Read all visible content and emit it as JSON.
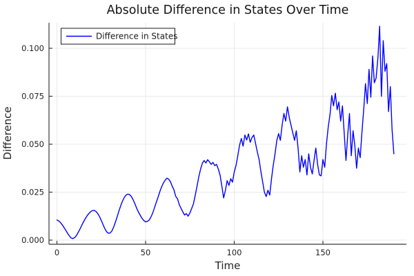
{
  "title": "Absolute Difference in States Over Time",
  "legend": {
    "label": "Difference in States"
  },
  "colors": {
    "line": "#0000ff",
    "grid": "#e9e9e9",
    "spine": "#36383a",
    "tick_label": "#222222",
    "title": "#141414",
    "legend_border": "#1a1a1a",
    "legend_bg": "#ffffff"
  },
  "chart_data": {
    "type": "line",
    "title": "Absolute Difference in States Over Time",
    "xlabel": "Time",
    "ylabel": "Difference",
    "xlim": [
      -4.5,
      197
    ],
    "ylim": [
      -0.0022,
      0.1133
    ],
    "grid": true,
    "legend_position": "top-left",
    "x_ticks": {
      "values": [
        0,
        50,
        100,
        150
      ],
      "labels": [
        "0",
        "50",
        "100",
        "150"
      ]
    },
    "y_ticks": {
      "values": [
        0.0,
        0.025,
        0.05,
        0.075,
        0.1
      ],
      "labels": [
        "0.000",
        "0.025",
        "0.050",
        "0.075",
        "0.100"
      ]
    },
    "series": [
      {
        "name": "Difference in States",
        "color": "#0000ff",
        "x_start": 0,
        "x_step": 1,
        "y": [
          0.0105,
          0.01,
          0.0092,
          0.008,
          0.0066,
          0.0051,
          0.0036,
          0.0022,
          0.0011,
          0.0008,
          0.0013,
          0.0024,
          0.004,
          0.0058,
          0.0077,
          0.0095,
          0.0112,
          0.0127,
          0.0139,
          0.0148,
          0.0154,
          0.0155,
          0.015,
          0.0139,
          0.0123,
          0.0103,
          0.0081,
          0.006,
          0.0044,
          0.0036,
          0.0037,
          0.0048,
          0.0068,
          0.0094,
          0.0123,
          0.0152,
          0.018,
          0.0204,
          0.0223,
          0.0235,
          0.024,
          0.0237,
          0.0227,
          0.021,
          0.0189,
          0.0166,
          0.0146,
          0.0129,
          0.0113,
          0.0102,
          0.0095,
          0.0098,
          0.0104,
          0.012,
          0.0141,
          0.0168,
          0.0196,
          0.0223,
          0.0252,
          0.0277,
          0.0297,
          0.0312,
          0.0323,
          0.0318,
          0.0305,
          0.0282,
          0.0262,
          0.0228,
          0.0215,
          0.0185,
          0.0166,
          0.0147,
          0.0131,
          0.0138,
          0.0125,
          0.0142,
          0.0165,
          0.019,
          0.0235,
          0.028,
          0.033,
          0.037,
          0.04,
          0.0415,
          0.0402,
          0.0419,
          0.0408,
          0.0395,
          0.0405,
          0.0388,
          0.0395,
          0.037,
          0.034,
          0.0282,
          0.022,
          0.0258,
          0.031,
          0.0285,
          0.032,
          0.0302,
          0.0355,
          0.039,
          0.044,
          0.0495,
          0.053,
          0.049,
          0.0548,
          0.0522,
          0.0554,
          0.051,
          0.0535,
          0.0548,
          0.0505,
          0.046,
          0.042,
          0.036,
          0.0305,
          0.025,
          0.0227,
          0.026,
          0.0235,
          0.032,
          0.039,
          0.045,
          0.052,
          0.0555,
          0.052,
          0.06,
          0.066,
          0.062,
          0.0695,
          0.064,
          0.06,
          0.056,
          0.052,
          0.057,
          0.048,
          0.0355,
          0.044,
          0.038,
          0.042,
          0.034,
          0.045,
          0.038,
          0.0345,
          0.0415,
          0.048,
          0.0395,
          0.034,
          0.0335,
          0.042,
          0.038,
          0.05,
          0.059,
          0.0655,
          0.0754,
          0.07,
          0.0766,
          0.068,
          0.072,
          0.062,
          0.07,
          0.056,
          0.0415,
          0.055,
          0.066,
          0.044,
          0.057,
          0.049,
          0.0375,
          0.048,
          0.043,
          0.056,
          0.068,
          0.0816,
          0.0712,
          0.089,
          0.0745,
          0.096,
          0.082,
          0.0845,
          0.095,
          0.1115,
          0.075,
          0.104,
          0.088,
          0.092,
          0.067,
          0.08,
          0.0577,
          0.045
        ]
      }
    ]
  }
}
